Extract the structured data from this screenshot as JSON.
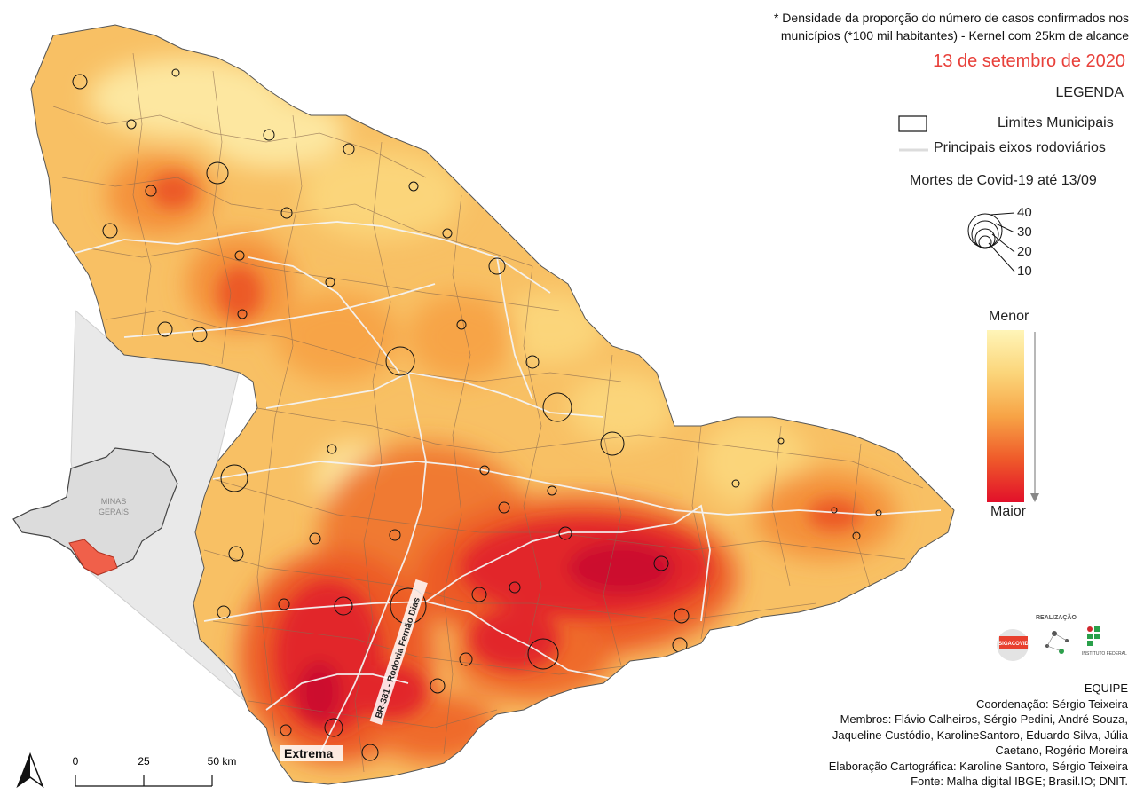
{
  "note": "* Densidade da proporção do número de casos confirmados nos municípios (*100 mil habitantes) - Kernel com 25km de alcance",
  "date": "13 de setembro de 2020",
  "legend": {
    "title": "LEGENDA",
    "municipal_limits": "Limites Municipais",
    "highways": "Principais eixos rodoviários",
    "deaths_title": "Mortes de Covid-19 até 13/09",
    "bubble_values": [
      "40",
      "30",
      "20",
      "10"
    ],
    "gradient_low": "Menor",
    "gradient_high": "Maior",
    "gradient_colors": [
      "#fff5b8",
      "#fbd57a",
      "#f7a446",
      "#ef5a2a",
      "#e2102a"
    ]
  },
  "inset": {
    "label_line1": "MINAS",
    "label_line2": "GERAIS",
    "highlight_color": "#f0604a"
  },
  "map_labels": {
    "city": "Extrema",
    "highway": "BR-381 - Rodovia Fernão Dias"
  },
  "scale": {
    "ticks": [
      "0",
      "25",
      "50 km"
    ]
  },
  "north_arrow": "north-arrow",
  "credits": {
    "realizacao": "REALIZAÇÃO",
    "logo1": "SIGACOVID",
    "logo3": "INSTITUTO FEDERAL",
    "team_title": "EQUIPE",
    "coord": "Coordenação: Sérgio Teixeira",
    "members": "Membros: Flávio Calheiros, Sérgio Pedini, André Souza, Jaqueline Custódio, KarolineSantoro, Eduardo Silva, Júlia Caetano, Rogério Moreira",
    "cartography": "Elaboração Cartográfica: Karoline Santoro, Sérgio Teixeira",
    "source": "Fonte: Malha digital IBGE; Brasil.IO; DNIT."
  }
}
